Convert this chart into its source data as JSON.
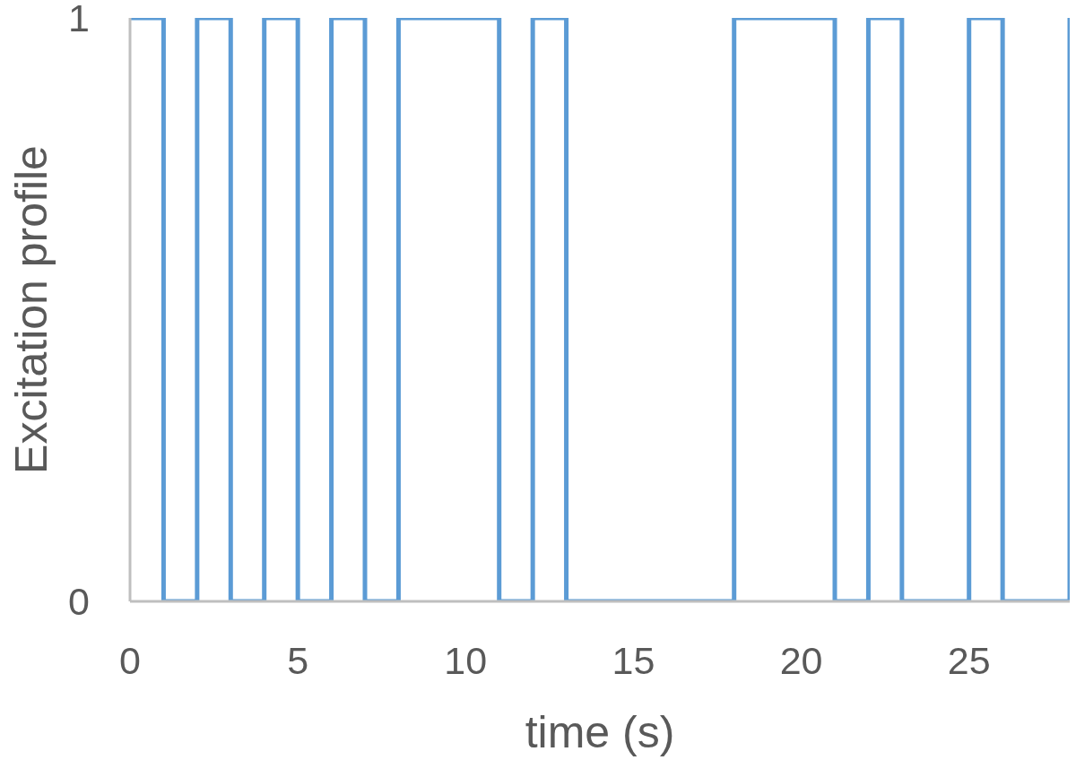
{
  "chart_data": {
    "type": "step",
    "xlabel": "time (s)",
    "ylabel": "Excitation profile",
    "x": [
      0,
      1,
      2,
      3,
      4,
      5,
      6,
      7,
      8,
      11,
      12,
      13,
      18,
      21,
      22,
      23,
      25,
      26,
      28
    ],
    "values": [
      1,
      0,
      1,
      0,
      1,
      0,
      1,
      0,
      1,
      0,
      1,
      0,
      1,
      0,
      1,
      0,
      1,
      0,
      1
    ],
    "color": "#5b9bd5",
    "xlim": [
      0,
      28
    ],
    "xticks": [
      0,
      5,
      10,
      15,
      20,
      25
    ],
    "ylim": [
      0,
      1
    ],
    "yticks": [
      0,
      1
    ]
  }
}
